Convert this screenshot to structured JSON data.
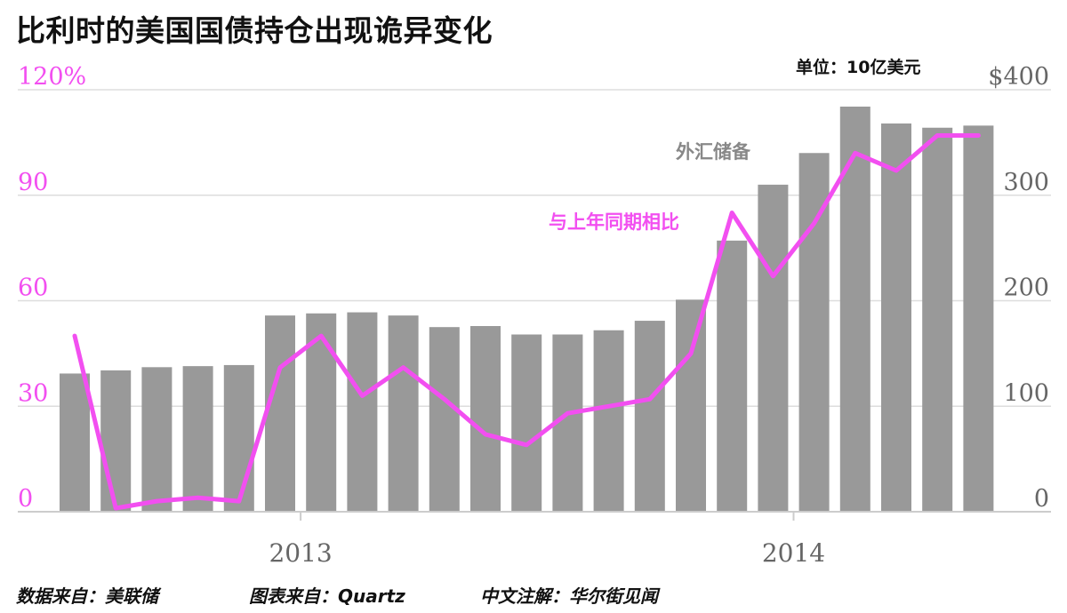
{
  "title": "比利时的美国国债持仓出现诡异变化",
  "unit_label": "单位：10亿美元",
  "footer": {
    "data_source": "数据来自：美联储",
    "chart_source": "图表来自：Quartz",
    "annotation": "中文注解：华尔街见闻"
  },
  "colors": {
    "bars": "#999999",
    "line": "#f24ff0",
    "left_axis_text": "#f24ff0",
    "right_axis_text": "#666666",
    "grid": "#dddddd",
    "bars_label": "#888888"
  },
  "chart_data": {
    "type": "bar",
    "series": [
      {
        "name": "外汇储备",
        "type": "bar",
        "axis": "right",
        "values": [
          131,
          134,
          137,
          138,
          139,
          186,
          188,
          189,
          186,
          175,
          176,
          168,
          168,
          172,
          181,
          201,
          257,
          310,
          340,
          384,
          368,
          364,
          366
        ]
      },
      {
        "name": "与上年同期相比",
        "type": "line",
        "axis": "left",
        "values": [
          50,
          1,
          3,
          4,
          3,
          41,
          50,
          33,
          41,
          32,
          22,
          19,
          28,
          30,
          32,
          45,
          85,
          67,
          82,
          102,
          97,
          107,
          107
        ]
      }
    ],
    "left_axis": {
      "ylim": [
        0,
        120
      ],
      "ticks": [
        "0",
        "30",
        "60",
        "90",
        "120%"
      ]
    },
    "right_axis": {
      "ylim": [
        0,
        400
      ],
      "ticks": [
        "0",
        "100",
        "200",
        "300",
        "$400"
      ]
    },
    "x_tick_labels": [
      {
        "label": "2013",
        "index": 5.5
      },
      {
        "label": "2014",
        "index": 17.5
      }
    ],
    "series_labels": {
      "bars": "外汇储备",
      "line": "与上年同期相比"
    },
    "grid": true
  }
}
